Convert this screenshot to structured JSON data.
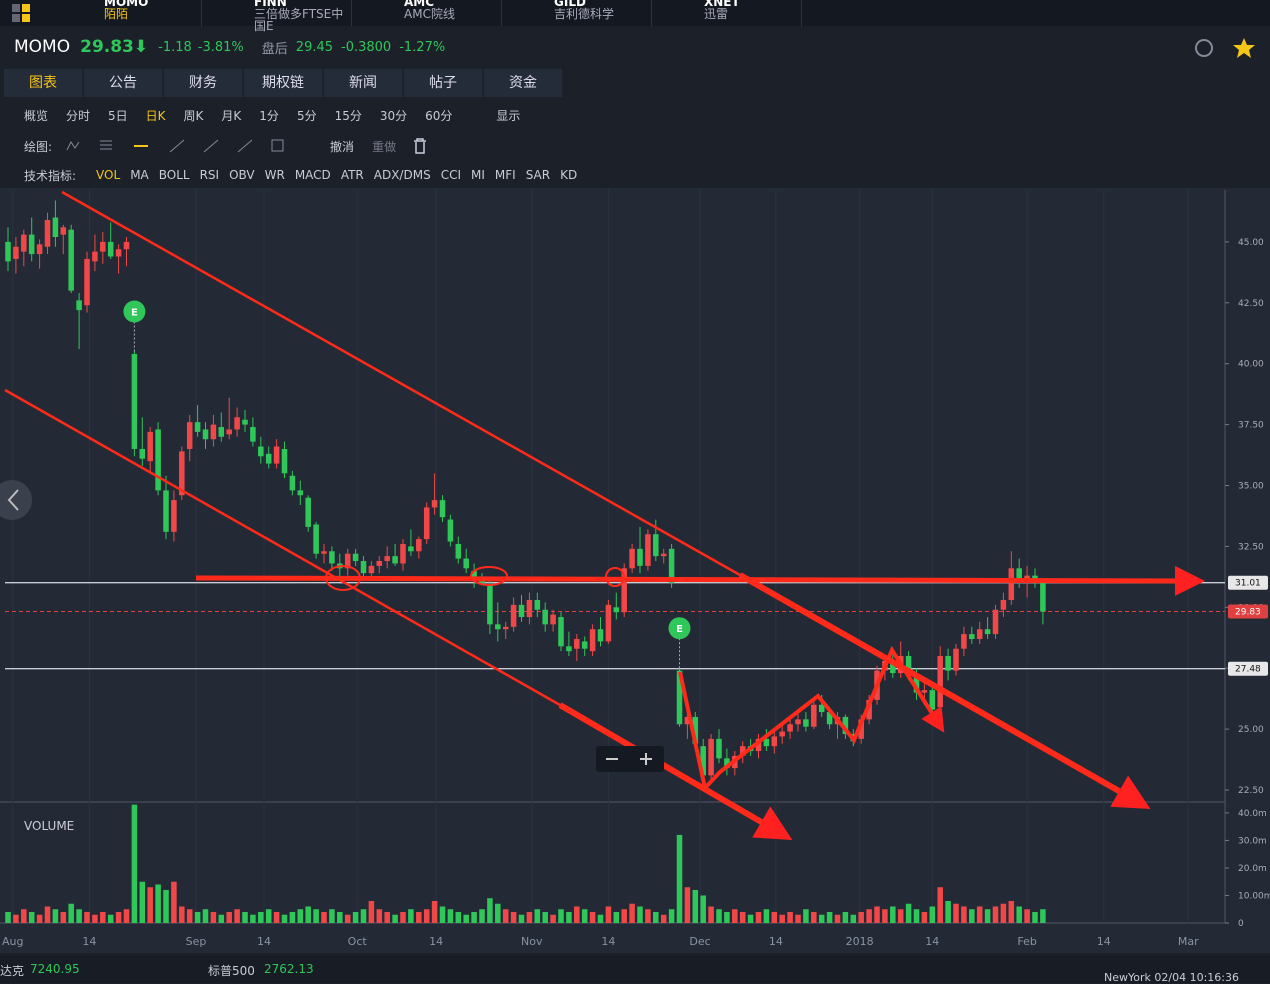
{
  "tabs": [
    {
      "code": "MOMO",
      "name": "陌陌"
    },
    {
      "code": "FINN",
      "name": "三倍做多FTSE中国E"
    },
    {
      "code": "AMC",
      "name": "AMC院线"
    },
    {
      "code": "GILD",
      "name": "吉利德科学"
    },
    {
      "code": "XNET",
      "name": "迅雷"
    }
  ],
  "quote": {
    "symbol": "MOMO",
    "price": "29.83⬇",
    "change": "-1.18",
    "pct": "-3.81%",
    "after_label": "盘后",
    "after_price": "29.45",
    "after_change": "-0.3800",
    "after_pct": "-1.27%"
  },
  "menu": [
    "图表",
    "公告",
    "财务",
    "期权链",
    "新闻",
    "帖子",
    "资金"
  ],
  "periods": [
    "概览",
    "分时",
    "5日",
    "日K",
    "周K",
    "月K",
    "1分",
    "5分",
    "15分",
    "30分",
    "60分"
  ],
  "display": "显示",
  "draw_label": "绘图:",
  "undo": "撤消",
  "redo": "重做",
  "indicator_label": "技术指标:",
  "indicators": [
    "VOL",
    "MA",
    "BOLL",
    "RSI",
    "OBV",
    "WR",
    "MACD",
    "ATR",
    "ADX/DMS",
    "CCI",
    "MI",
    "MFI",
    "SAR",
    "KD"
  ],
  "footer": {
    "idx1_name": "达克",
    "idx1": "7240.95",
    "idx2_name": "标普500",
    "idx2": "2762.13",
    "time": "NewYork 02/04 10:16:36"
  },
  "chart_data": {
    "type": "candlestick",
    "up_color": "#f04848",
    "down_color": "#2fc65a",
    "xlim": [
      -0.38,
      154.05
    ],
    "ylim": [
      22.09,
      47.13
    ],
    "xticks": [
      {
        "value": 0.6,
        "label": "Aug"
      },
      {
        "value": 10.3,
        "label": "14"
      },
      {
        "value": 23.8,
        "label": "Sep"
      },
      {
        "value": 32.4,
        "label": "14"
      },
      {
        "value": 44.2,
        "label": "Oct"
      },
      {
        "value": 54.2,
        "label": "14"
      },
      {
        "value": 66.3,
        "label": "Nov"
      },
      {
        "value": 76,
        "label": "14"
      },
      {
        "value": 87.6,
        "label": "Dec"
      },
      {
        "value": 97.2,
        "label": "14"
      },
      {
        "value": 107.8,
        "label": "2018"
      },
      {
        "value": 117,
        "label": "14"
      },
      {
        "value": 129,
        "label": "Feb"
      },
      {
        "value": 138.7,
        "label": "14"
      },
      {
        "value": 149.4,
        "label": "Mar"
      }
    ],
    "yticks": [
      {
        "value": 22.5,
        "label": "22.50"
      },
      {
        "value": 25,
        "label": "25.00"
      },
      {
        "value": 27.5,
        "label": "27.50"
      },
      {
        "value": 30,
        "label": "30.00"
      },
      {
        "value": 32.5,
        "label": "32.50"
      },
      {
        "value": 35,
        "label": "35.00"
      },
      {
        "value": 37.5,
        "label": "37.50"
      },
      {
        "value": 40,
        "label": "40.00"
      },
      {
        "value": 42.5,
        "label": "42.50"
      },
      {
        "value": 45,
        "label": "45.00"
      }
    ],
    "hlines": [
      {
        "value": 31.01,
        "label": "31.01"
      },
      {
        "value": 27.48,
        "label": "27.48"
      }
    ],
    "last_price": {
      "value": 29.83,
      "label": "29.83"
    },
    "events": [
      {
        "index": 16,
        "label": "E"
      },
      {
        "index": 85,
        "label": "E"
      }
    ],
    "volume_label": "VOLUME",
    "vlim": [
      0,
      43.6
    ],
    "vticks": [
      0,
      {
        "value": 10,
        "label": "10.00m"
      },
      {
        "value": 20,
        "label": "20.0m"
      },
      {
        "value": 30,
        "label": "30.0m"
      },
      {
        "value": 40,
        "label": "40.0m"
      }
    ],
    "candles": [
      [
        45.0,
        45.6,
        43.8,
        44.2
      ],
      [
        44.3,
        45.2,
        43.7,
        44.8
      ],
      [
        44.6,
        45.5,
        44.0,
        45.3
      ],
      [
        45.3,
        46.0,
        44.2,
        44.5
      ],
      [
        44.5,
        45.1,
        43.9,
        44.9
      ],
      [
        44.8,
        46.2,
        44.5,
        45.9
      ],
      [
        46.0,
        46.7,
        44.8,
        45.2
      ],
      [
        45.3,
        45.7,
        44.5,
        45.6
      ],
      [
        45.5,
        45.7,
        42.9,
        43.0
      ],
      [
        42.6,
        42.9,
        40.6,
        42.2
      ],
      [
        42.4,
        44.6,
        42.1,
        44.3
      ],
      [
        44.2,
        45.3,
        43.8,
        44.6
      ],
      [
        44.6,
        45.4,
        44.1,
        45.0
      ],
      [
        45.0,
        45.8,
        44.3,
        44.4
      ],
      [
        44.4,
        44.9,
        43.7,
        44.7
      ],
      [
        44.7,
        45.2,
        44.0,
        45.0
      ],
      [
        40.4,
        40.5,
        36.2,
        36.5
      ],
      [
        36.5,
        37.8,
        35.8,
        36.1
      ],
      [
        36.0,
        37.4,
        35.5,
        37.2
      ],
      [
        37.3,
        37.6,
        34.6,
        34.8
      ],
      [
        34.8,
        35.4,
        32.8,
        33.1
      ],
      [
        33.1,
        34.8,
        32.7,
        34.4
      ],
      [
        34.6,
        36.6,
        34.4,
        36.4
      ],
      [
        36.5,
        37.9,
        36.0,
        37.6
      ],
      [
        37.6,
        38.3,
        37.0,
        37.2
      ],
      [
        37.3,
        37.6,
        36.5,
        36.9
      ],
      [
        36.9,
        37.9,
        36.6,
        37.5
      ],
      [
        37.4,
        38.0,
        36.8,
        37.0
      ],
      [
        37.1,
        38.6,
        36.9,
        37.3
      ],
      [
        37.3,
        38.2,
        37.0,
        37.8
      ],
      [
        37.7,
        38.1,
        37.2,
        37.5
      ],
      [
        37.4,
        37.8,
        36.6,
        36.8
      ],
      [
        36.6,
        37.0,
        35.9,
        36.2
      ],
      [
        36.3,
        36.6,
        35.7,
        35.9
      ],
      [
        35.9,
        36.9,
        35.7,
        36.6
      ],
      [
        36.5,
        36.8,
        35.3,
        35.5
      ],
      [
        35.4,
        35.6,
        34.6,
        34.8
      ],
      [
        34.8,
        35.2,
        34.2,
        34.6
      ],
      [
        34.5,
        34.6,
        33.1,
        33.3
      ],
      [
        33.4,
        33.5,
        32.0,
        32.2
      ],
      [
        32.2,
        32.6,
        31.8,
        32.3
      ],
      [
        32.3,
        32.5,
        31.5,
        31.8
      ],
      [
        31.8,
        32.2,
        31.2,
        31.6
      ],
      [
        31.6,
        32.4,
        31.3,
        32.2
      ],
      [
        32.2,
        32.4,
        31.7,
        31.9
      ],
      [
        31.9,
        32.1,
        31.2,
        31.4
      ],
      [
        31.4,
        31.9,
        31.2,
        31.7
      ],
      [
        31.7,
        32.1,
        31.4,
        31.9
      ],
      [
        31.9,
        32.5,
        31.6,
        32.1
      ],
      [
        32.1,
        32.6,
        31.7,
        31.8
      ],
      [
        31.8,
        32.8,
        31.5,
        32.6
      ],
      [
        32.5,
        33.2,
        32.1,
        32.3
      ],
      [
        32.3,
        32.9,
        32.0,
        32.8
      ],
      [
        32.8,
        34.3,
        32.6,
        34.1
      ],
      [
        34.1,
        35.5,
        33.8,
        34.4
      ],
      [
        34.4,
        34.6,
        33.5,
        33.7
      ],
      [
        33.6,
        33.8,
        32.5,
        32.7
      ],
      [
        32.6,
        32.9,
        31.8,
        32.0
      ],
      [
        32.0,
        32.4,
        31.4,
        31.6
      ],
      [
        31.5,
        31.8,
        30.8,
        31.2
      ],
      [
        31.2,
        31.4,
        30.9,
        31.0
      ],
      [
        30.9,
        31.1,
        28.9,
        29.3
      ],
      [
        29.3,
        30.2,
        28.6,
        29.1
      ],
      [
        29.1,
        29.4,
        28.7,
        29.2
      ],
      [
        29.2,
        30.4,
        29.0,
        30.1
      ],
      [
        30.1,
        30.5,
        29.4,
        29.6
      ],
      [
        29.6,
        30.6,
        29.3,
        30.3
      ],
      [
        30.3,
        30.6,
        29.6,
        29.9
      ],
      [
        29.9,
        30.2,
        29.0,
        29.3
      ],
      [
        29.3,
        29.9,
        29.0,
        29.7
      ],
      [
        29.6,
        29.8,
        28.2,
        28.4
      ],
      [
        28.4,
        29.0,
        28.0,
        28.2
      ],
      [
        28.3,
        28.9,
        27.8,
        28.7
      ],
      [
        28.6,
        28.8,
        28.0,
        28.3
      ],
      [
        28.2,
        29.3,
        28.0,
        29.1
      ],
      [
        29.1,
        29.6,
        28.4,
        28.6
      ],
      [
        28.6,
        30.3,
        28.5,
        30.1
      ],
      [
        30.0,
        30.6,
        29.5,
        29.8
      ],
      [
        29.8,
        31.8,
        29.6,
        31.6
      ],
      [
        31.6,
        32.6,
        31.4,
        32.4
      ],
      [
        32.4,
        33.3,
        31.4,
        31.7
      ],
      [
        31.7,
        33.2,
        31.5,
        33.0
      ],
      [
        33.0,
        33.6,
        31.9,
        32.1
      ],
      [
        32.1,
        32.4,
        31.8,
        32.2
      ],
      [
        32.4,
        32.6,
        30.8,
        31.0
      ],
      [
        27.4,
        27.5,
        25.1,
        25.2
      ],
      [
        25.2,
        26.0,
        24.6,
        25.5
      ],
      [
        25.5,
        25.7,
        24.2,
        24.4
      ],
      [
        24.3,
        24.6,
        22.9,
        23.1
      ],
      [
        23.1,
        24.8,
        22.9,
        24.6
      ],
      [
        24.6,
        25.0,
        23.6,
        23.8
      ],
      [
        23.8,
        24.2,
        23.1,
        23.4
      ],
      [
        23.4,
        24.1,
        23.1,
        23.9
      ],
      [
        23.9,
        24.5,
        23.6,
        24.3
      ],
      [
        24.3,
        24.6,
        23.9,
        24.1
      ],
      [
        24.1,
        24.8,
        23.8,
        24.6
      ],
      [
        24.6,
        25.0,
        24.1,
        24.3
      ],
      [
        24.3,
        24.9,
        24.0,
        24.7
      ],
      [
        24.7,
        25.2,
        24.4,
        24.9
      ],
      [
        24.9,
        25.4,
        24.6,
        25.2
      ],
      [
        25.2,
        25.8,
        24.9,
        25.4
      ],
      [
        25.4,
        25.7,
        24.9,
        25.1
      ],
      [
        25.1,
        26.2,
        25.0,
        26.0
      ],
      [
        26.0,
        26.4,
        25.5,
        25.7
      ],
      [
        25.7,
        25.9,
        25.0,
        25.2
      ],
      [
        25.2,
        25.7,
        24.6,
        25.5
      ],
      [
        25.5,
        25.6,
        24.6,
        24.8
      ],
      [
        24.8,
        25.0,
        24.3,
        24.5
      ],
      [
        24.6,
        25.6,
        24.4,
        25.4
      ],
      [
        25.4,
        26.4,
        25.2,
        26.2
      ],
      [
        26.2,
        27.6,
        26.0,
        27.4
      ],
      [
        27.4,
        28.0,
        27.0,
        27.8
      ],
      [
        27.8,
        28.1,
        27.1,
        27.3
      ],
      [
        27.3,
        28.6,
        27.1,
        28.0
      ],
      [
        28.0,
        28.2,
        27.0,
        27.2
      ],
      [
        27.2,
        27.5,
        26.2,
        26.5
      ],
      [
        26.5,
        26.9,
        26.0,
        26.6
      ],
      [
        26.6,
        26.8,
        25.6,
        25.8
      ],
      [
        25.9,
        28.4,
        25.7,
        28.0
      ],
      [
        28.0,
        28.3,
        27.0,
        27.4
      ],
      [
        27.4,
        28.5,
        27.2,
        28.3
      ],
      [
        28.3,
        29.2,
        28.0,
        28.9
      ],
      [
        28.9,
        29.2,
        28.5,
        28.7
      ],
      [
        28.7,
        29.4,
        28.5,
        29.1
      ],
      [
        29.1,
        29.6,
        28.7,
        28.9
      ],
      [
        28.9,
        30.1,
        28.7,
        29.9
      ],
      [
        29.9,
        30.6,
        29.6,
        30.3
      ],
      [
        30.3,
        32.3,
        30.1,
        31.6
      ],
      [
        31.6,
        32.0,
        30.8,
        31.0
      ],
      [
        31.0,
        31.7,
        30.4,
        31.3
      ],
      [
        31.3,
        31.6,
        30.8,
        31.0
      ],
      [
        31.0,
        31.2,
        29.3,
        29.83
      ]
    ],
    "volume": [
      4,
      3,
      5,
      4,
      3,
      6,
      5,
      4,
      7,
      5,
      4,
      3,
      4,
      3,
      4,
      5,
      43,
      15,
      13,
      14,
      12,
      15,
      6,
      5,
      4,
      5,
      4,
      3,
      4,
      5,
      4,
      3,
      4,
      5,
      4,
      3,
      4,
      5,
      6,
      5,
      4,
      5,
      4,
      3,
      4,
      5,
      8,
      5,
      4,
      3,
      4,
      5,
      4,
      5,
      8,
      6,
      5,
      4,
      3,
      4,
      5,
      9,
      7,
      5,
      4,
      3,
      4,
      5,
      4,
      3,
      5,
      4,
      6,
      5,
      4,
      3,
      6,
      4,
      5,
      7,
      6,
      5,
      4,
      3,
      5,
      32,
      13,
      12,
      10,
      6,
      5,
      4,
      5,
      4,
      3,
      4,
      5,
      4,
      3,
      4,
      3,
      5,
      4,
      3,
      4,
      3,
      4,
      3,
      4,
      5,
      6,
      5,
      6,
      5,
      7,
      5,
      4,
      6,
      13,
      8,
      7,
      6,
      5,
      6,
      5,
      6,
      7,
      8,
      6,
      5,
      4,
      5
    ]
  }
}
